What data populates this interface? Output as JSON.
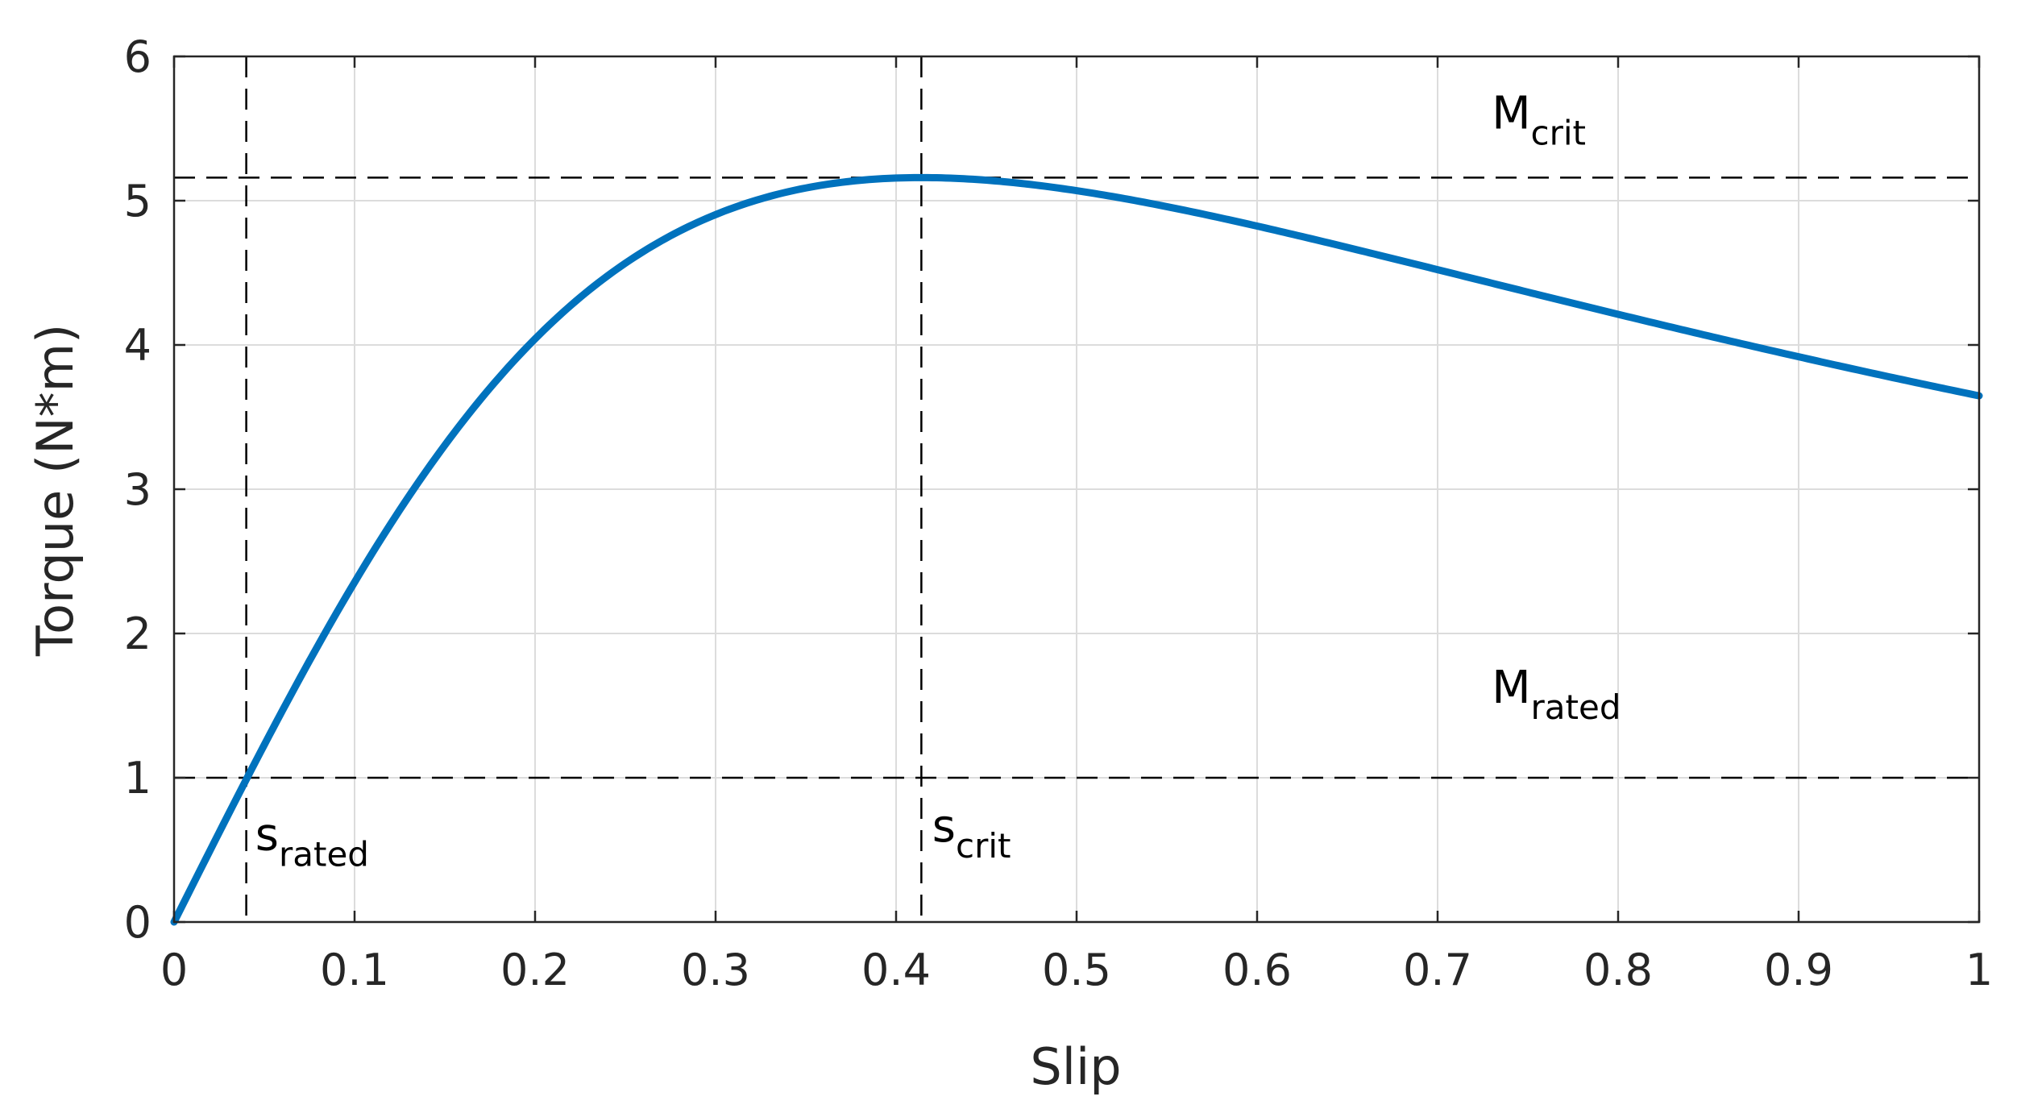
{
  "chart_data": {
    "type": "line",
    "title": "",
    "xlabel": "Slip",
    "ylabel": "Torque (N*m)",
    "xlim": [
      0,
      1
    ],
    "ylim": [
      0,
      6
    ],
    "x_ticks": [
      0,
      0.1,
      0.2,
      0.3,
      0.4,
      0.5,
      0.6,
      0.7,
      0.8,
      0.9,
      1
    ],
    "x_tick_labels": [
      "0",
      "0.1",
      "0.2",
      "0.3",
      "0.4",
      "0.5",
      "0.6",
      "0.7",
      "0.8",
      "0.9",
      "1"
    ],
    "y_ticks": [
      0,
      1,
      2,
      3,
      4,
      5,
      6
    ],
    "y_tick_labels": [
      "0",
      "1",
      "2",
      "3",
      "4",
      "5",
      "6"
    ],
    "grid": true,
    "series": [
      {
        "name": "Torque",
        "color": "#0072BD",
        "curve_model": {
          "type": "kloss",
          "M_crit": 5.16,
          "s_crit": 0.414
        },
        "sampled_points": [
          {
            "x": 0.0,
            "y": 0.0
          },
          {
            "x": 0.04,
            "y": 0.98
          },
          {
            "x": 0.1,
            "y": 2.34
          },
          {
            "x": 0.2,
            "y": 3.99
          },
          {
            "x": 0.3,
            "y": 4.87
          },
          {
            "x": 0.414,
            "y": 5.16
          },
          {
            "x": 0.5,
            "y": 5.07
          },
          {
            "x": 0.6,
            "y": 4.79
          },
          {
            "x": 0.7,
            "y": 4.49
          },
          {
            "x": 0.8,
            "y": 4.19
          },
          {
            "x": 0.9,
            "y": 3.91
          },
          {
            "x": 1.0,
            "y": 3.66
          }
        ]
      }
    ],
    "reference_lines": [
      {
        "orientation": "vertical",
        "value": 0.04,
        "style": "dashed",
        "color": "#000000"
      },
      {
        "orientation": "vertical",
        "value": 0.414,
        "style": "dashed",
        "color": "#000000"
      },
      {
        "orientation": "horizontal",
        "value": 5.16,
        "style": "dashed",
        "color": "#000000"
      },
      {
        "orientation": "horizontal",
        "value": 1.0,
        "style": "dashed",
        "color": "#000000"
      }
    ],
    "annotations": [
      {
        "base": "M",
        "subscript": "crit",
        "x": 0.73,
        "y": 5.5
      },
      {
        "base": "M",
        "subscript": "rated",
        "x": 0.73,
        "y": 1.52
      },
      {
        "base": "s",
        "subscript": "rated",
        "x": 0.045,
        "y": 0.5
      },
      {
        "base": "s",
        "subscript": "crit",
        "x": 0.42,
        "y": 0.56
      }
    ]
  }
}
